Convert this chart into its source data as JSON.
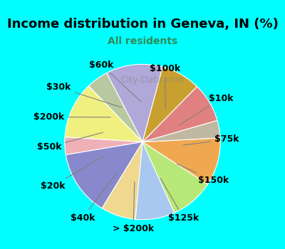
{
  "title": "Income distribution in Geneva, IN (%)",
  "subtitle": "All residents",
  "title_color": "#000000",
  "subtitle_color": "#2e8b57",
  "background_color": "#00ffff",
  "chart_bg_color": "#e8f5e9",
  "watermark": "City-Data.com",
  "labels": [
    "$100k",
    "$10k",
    "$75k",
    "$150k",
    "$125k",
    "> $200k",
    "$40k",
    "$20k",
    "$50k",
    "$200k",
    "$30k",
    "$60k"
  ],
  "values": [
    13,
    5,
    13,
    4,
    15,
    8,
    9,
    10,
    11,
    4,
    9,
    9
  ],
  "colors": [
    "#b0a8d8",
    "#b8c8a0",
    "#f0f080",
    "#f0b0b8",
    "#8888cc",
    "#f0d890",
    "#a8c8f0",
    "#b8e878",
    "#f0a850",
    "#c0b8a0",
    "#e08080",
    "#c8a030"
  ],
  "label_fontsize": 9,
  "startangle": 75
}
